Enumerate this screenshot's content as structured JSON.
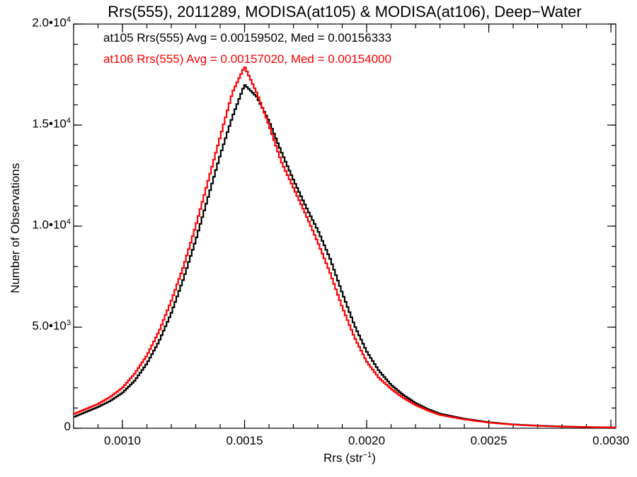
{
  "chart_data": {
    "type": "line",
    "title": "Rrs(555), 2011289, MODISA(at105) & MODISA(at106), Deep−Water",
    "xlabel": "Rrs (str",
    "xlabel_sup": "−1",
    "xlabel_end": ")",
    "ylabel": "Number of Observations",
    "xlim": [
      0.0008,
      0.00302
    ],
    "ylim": [
      0,
      20000
    ],
    "grid": false,
    "y_ticks": [
      {
        "value": 0,
        "label": "0",
        "sup": ""
      },
      {
        "value": 5000,
        "label": "5.0•10",
        "sup": "3"
      },
      {
        "value": 10000,
        "label": "1.0•10",
        "sup": "4"
      },
      {
        "value": 15000,
        "label": "1.5•10",
        "sup": "4"
      },
      {
        "value": 20000,
        "label": "2.0•10",
        "sup": "4"
      }
    ],
    "x_ticks": [
      {
        "value": 0.001,
        "label": "0.0010"
      },
      {
        "value": 0.0015,
        "label": "0.0015"
      },
      {
        "value": 0.002,
        "label": "0.0020"
      },
      {
        "value": 0.0025,
        "label": "0.0025"
      },
      {
        "value": 0.003,
        "label": "0.0030"
      }
    ],
    "annotations": [
      "at105 Rrs(555) Avg = 0.00159502, Med = 0.00156333",
      "at106 Rrs(555) Avg = 0.00157020, Med = 0.00154000"
    ],
    "series": [
      {
        "color": "#000000",
        "x": [
          0.0008,
          0.00085,
          0.0009,
          0.00095,
          0.001,
          0.00105,
          0.0011,
          0.00115,
          0.0012,
          0.00125,
          0.0013,
          0.00135,
          0.0014,
          0.00145,
          0.0015,
          0.00155,
          0.0016,
          0.00165,
          0.0017,
          0.00175,
          0.0018,
          0.00185,
          0.0019,
          0.00195,
          0.002,
          0.00205,
          0.0021,
          0.00215,
          0.0022,
          0.00225,
          0.0023,
          0.0024,
          0.0025,
          0.0026,
          0.0027,
          0.0028,
          0.0029,
          0.00302
        ],
        "y": [
          550,
          800,
          1050,
          1350,
          1750,
          2350,
          3200,
          4300,
          5700,
          7400,
          9300,
          11400,
          13500,
          15400,
          17000,
          16400,
          15200,
          13700,
          12300,
          11000,
          9800,
          8400,
          6700,
          5100,
          3800,
          2850,
          2150,
          1650,
          1250,
          950,
          720,
          470,
          300,
          190,
          130,
          90,
          60,
          40
        ]
      },
      {
        "color": "#ff0000",
        "x": [
          0.0008,
          0.00085,
          0.0009,
          0.00095,
          0.001,
          0.00105,
          0.0011,
          0.00115,
          0.0012,
          0.00125,
          0.0013,
          0.00135,
          0.0014,
          0.00145,
          0.0015,
          0.00155,
          0.0016,
          0.00165,
          0.0017,
          0.00175,
          0.0018,
          0.00185,
          0.0019,
          0.00195,
          0.002,
          0.00205,
          0.0021,
          0.00215,
          0.0022,
          0.00225,
          0.0023,
          0.0024,
          0.0025,
          0.0026,
          0.0027,
          0.0028,
          0.0029,
          0.00302
        ],
        "y": [
          700,
          950,
          1200,
          1550,
          2000,
          2700,
          3600,
          4800,
          6300,
          8000,
          10000,
          12200,
          14400,
          16600,
          17900,
          16600,
          15000,
          13200,
          11900,
          10600,
          9200,
          7700,
          6000,
          4500,
          3300,
          2500,
          1950,
          1500,
          1150,
          880,
          660,
          440,
          280,
          180,
          120,
          80,
          55,
          35
        ]
      }
    ]
  }
}
